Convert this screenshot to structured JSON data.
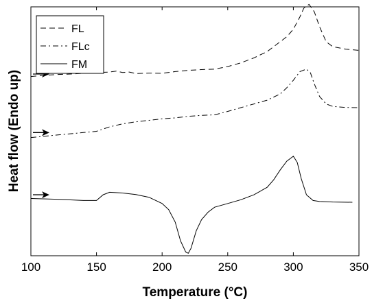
{
  "chart_data": {
    "type": "line",
    "title": "",
    "xlabel": "Temperature (°C)",
    "ylabel": "Heat flow (Endo up)",
    "xlim": [
      100,
      350
    ],
    "ylim": [
      0,
      10
    ],
    "xticks": [
      100,
      150,
      200,
      250,
      300,
      350
    ],
    "yticks_shown": false,
    "grid": false,
    "legend_position": "top-left",
    "arrow_direction": "right",
    "series": [
      {
        "name": "FL",
        "style": "dashed",
        "color": "#000000",
        "arrow_y": 7.3,
        "x": [
          100,
          110,
          120,
          130,
          140,
          150,
          160,
          165,
          170,
          175,
          180,
          190,
          200,
          210,
          220,
          230,
          240,
          250,
          260,
          270,
          280,
          285,
          290,
          295,
          300,
          305,
          308,
          312,
          316,
          320,
          325,
          330,
          340,
          350
        ],
        "y": [
          7.2,
          7.25,
          7.28,
          7.3,
          7.33,
          7.36,
          7.38,
          7.42,
          7.36,
          7.38,
          7.32,
          7.34,
          7.33,
          7.4,
          7.45,
          7.48,
          7.5,
          7.6,
          7.75,
          7.95,
          8.2,
          8.4,
          8.6,
          8.8,
          9.1,
          9.6,
          9.95,
          10.1,
          9.8,
          9.2,
          8.6,
          8.4,
          8.3,
          8.25
        ]
      },
      {
        "name": "FLc",
        "style": "dashdot",
        "color": "#000000",
        "arrow_y": 4.95,
        "x": [
          100,
          110,
          120,
          130,
          140,
          150,
          160,
          170,
          180,
          190,
          200,
          210,
          220,
          230,
          240,
          250,
          260,
          270,
          280,
          290,
          295,
          300,
          305,
          310,
          313,
          316,
          320,
          325,
          330,
          340,
          350
        ],
        "y": [
          4.75,
          4.8,
          4.85,
          4.9,
          4.95,
          5.0,
          5.18,
          5.3,
          5.38,
          5.44,
          5.5,
          5.54,
          5.6,
          5.64,
          5.66,
          5.8,
          5.95,
          6.1,
          6.25,
          6.5,
          6.75,
          7.05,
          7.4,
          7.5,
          7.35,
          6.9,
          6.4,
          6.1,
          6.0,
          5.96,
          5.95
        ]
      },
      {
        "name": "FM",
        "style": "solid",
        "color": "#000000",
        "arrow_y": 2.45,
        "x": [
          100,
          120,
          140,
          150,
          155,
          160,
          170,
          180,
          190,
          200,
          205,
          210,
          214,
          218,
          220,
          222,
          226,
          230,
          235,
          240,
          250,
          260,
          270,
          280,
          285,
          290,
          295,
          300,
          303,
          306,
          310,
          315,
          320,
          330,
          345
        ],
        "y": [
          2.3,
          2.27,
          2.22,
          2.22,
          2.45,
          2.55,
          2.52,
          2.46,
          2.35,
          2.1,
          1.85,
          1.35,
          0.6,
          0.15,
          0.1,
          0.3,
          1.0,
          1.45,
          1.75,
          1.95,
          2.1,
          2.25,
          2.45,
          2.75,
          3.05,
          3.45,
          3.8,
          4.0,
          3.75,
          3.1,
          2.45,
          2.22,
          2.18,
          2.16,
          2.15
        ]
      }
    ]
  }
}
